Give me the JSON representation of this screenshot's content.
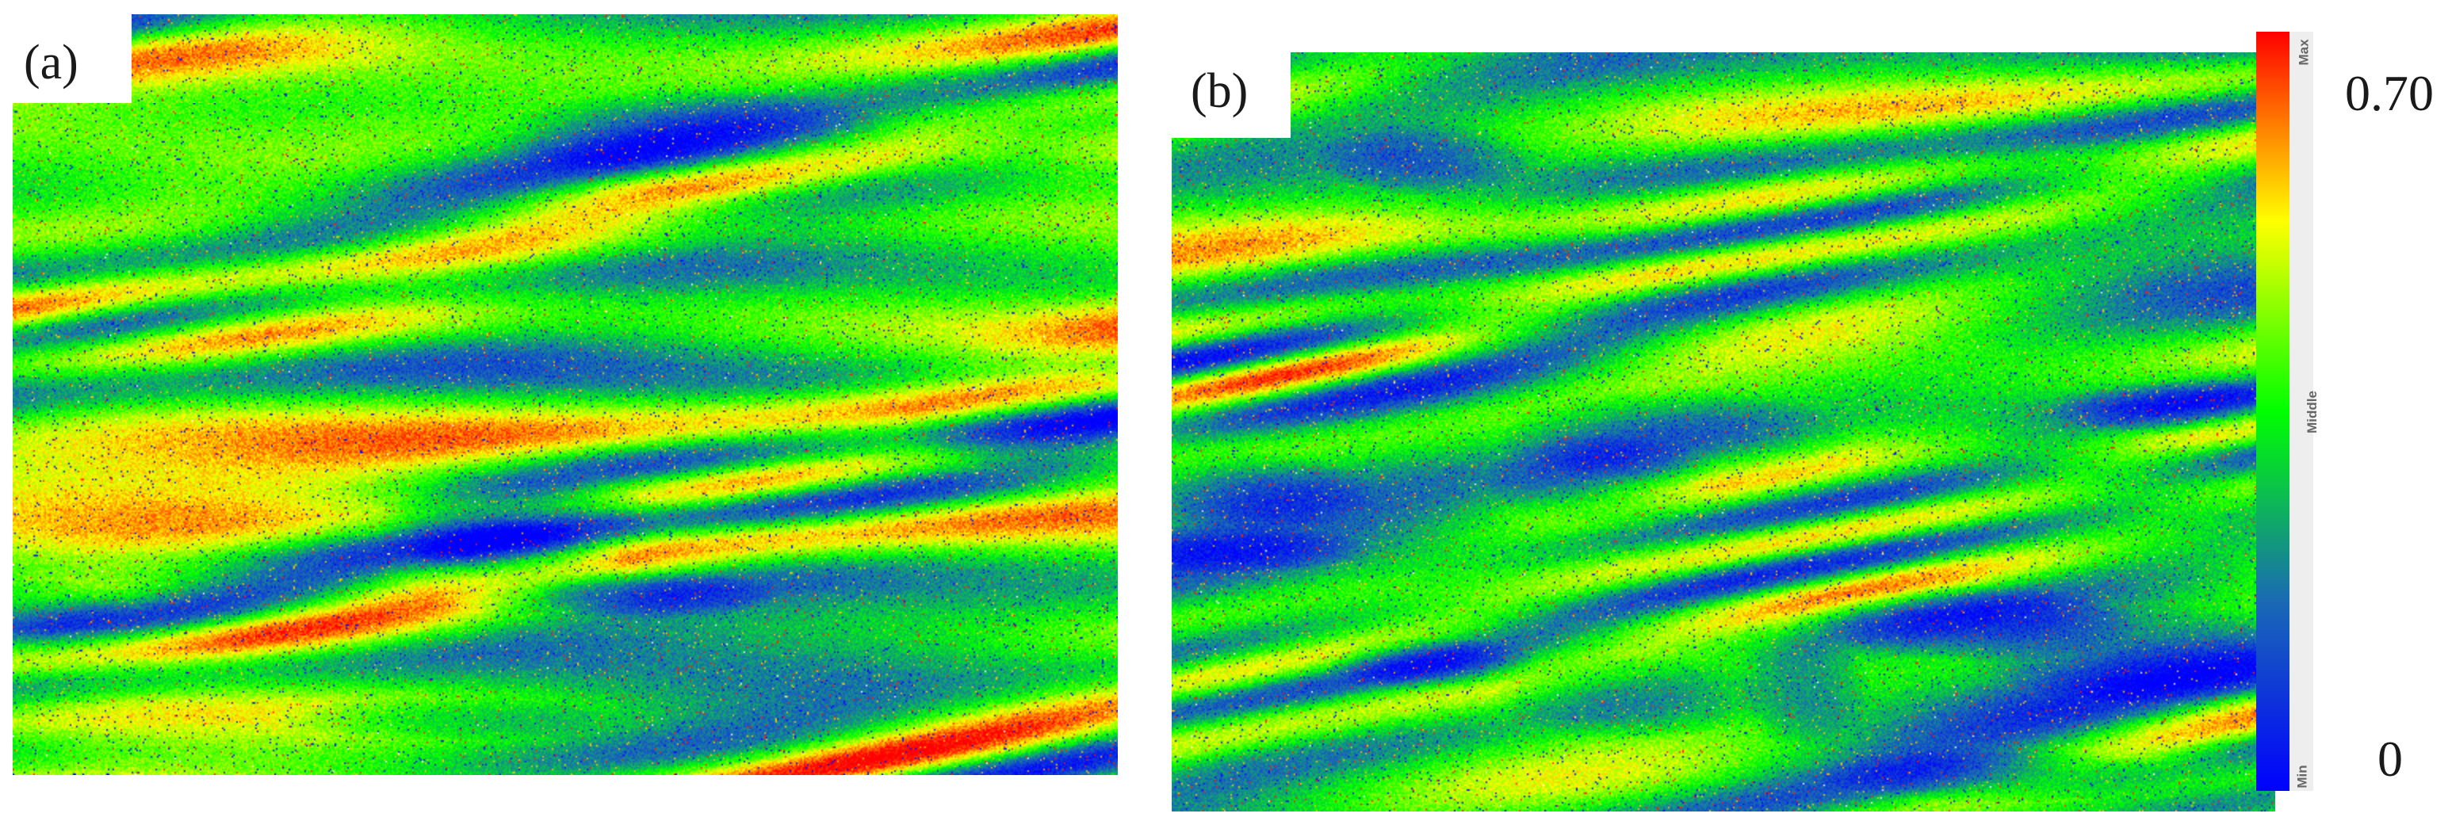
{
  "panels": [
    {
      "label": "(a)"
    },
    {
      "label": "(b)"
    }
  ],
  "colorbar": {
    "ticks": {
      "max": "Max",
      "middle": "Middle",
      "min": "Min"
    },
    "range": {
      "max": "0.70",
      "min": "0"
    },
    "colors": [
      "#ff0000",
      "#ffff00",
      "#00ff00",
      "#1a6ab4",
      "#0000ff"
    ]
  }
}
